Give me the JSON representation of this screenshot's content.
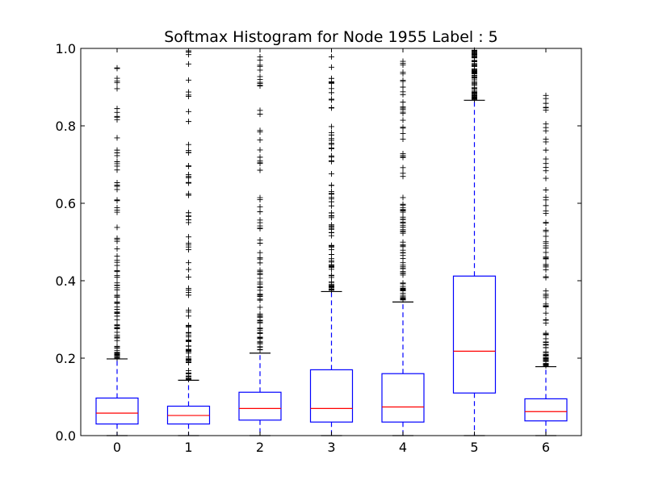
{
  "chart_data": {
    "type": "boxplot",
    "title": "Softmax Histogram for Node 1955 Label : 5",
    "xlabel": "",
    "ylabel": "",
    "ylim": [
      0.0,
      1.0
    ],
    "yticks": [
      "0.0",
      "0.2",
      "0.4",
      "0.6",
      "0.8",
      "1.0"
    ],
    "categories": [
      "0",
      "1",
      "2",
      "3",
      "4",
      "5",
      "6"
    ],
    "grid": false,
    "colors": {
      "box": "#0000ff",
      "median": "#ff0000",
      "whisker": "#0000ff",
      "cap": "#000000",
      "flier": "#000000"
    },
    "boxes": [
      {
        "label": "0",
        "whisker_low": 0.0,
        "q1": 0.03,
        "median": 0.058,
        "q3": 0.097,
        "whisker_high": 0.198,
        "fliers_range": [
          0.2,
          0.955
        ]
      },
      {
        "label": "1",
        "whisker_low": 0.0,
        "q1": 0.03,
        "median": 0.052,
        "q3": 0.076,
        "whisker_high": 0.143,
        "fliers_range": [
          0.145,
          1.0
        ]
      },
      {
        "label": "2",
        "whisker_low": 0.0,
        "q1": 0.04,
        "median": 0.07,
        "q3": 0.112,
        "whisker_high": 0.213,
        "fliers_range": [
          0.215,
          1.0
        ]
      },
      {
        "label": "3",
        "whisker_low": 0.0,
        "q1": 0.035,
        "median": 0.07,
        "q3": 0.17,
        "whisker_high": 0.372,
        "fliers_range": [
          0.375,
          0.985
        ]
      },
      {
        "label": "4",
        "whisker_low": 0.0,
        "q1": 0.035,
        "median": 0.074,
        "q3": 0.16,
        "whisker_high": 0.345,
        "fliers_range": [
          0.35,
          0.985
        ]
      },
      {
        "label": "5",
        "whisker_low": 0.0,
        "q1": 0.11,
        "median": 0.218,
        "q3": 0.412,
        "whisker_high": 0.866,
        "fliers_range": [
          0.868,
          1.0
        ]
      },
      {
        "label": "6",
        "whisker_low": 0.0,
        "q1": 0.038,
        "median": 0.062,
        "q3": 0.095,
        "whisker_high": 0.178,
        "fliers_range": [
          0.18,
          0.905
        ]
      }
    ]
  }
}
